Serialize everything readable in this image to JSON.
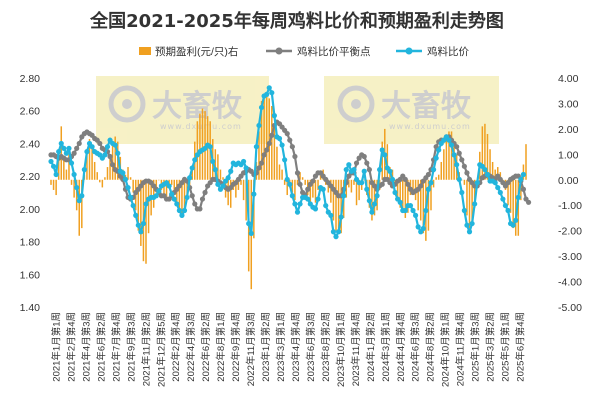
{
  "title": "全国2021-2025年每周鸡料比价和预期盈利走势图",
  "watermark": {
    "brand": "大畜牧",
    "url": "www.dxumu.com"
  },
  "colors": {
    "profit": "#f0a020",
    "balance": "#7f7f7f",
    "ratio": "#22b5dd",
    "band": "#f6f0c0"
  },
  "chart_data": {
    "type": "bar+line",
    "title": "全国2021-2025年每周鸡料比价和预期盈利走势图",
    "legend_position": "top",
    "x_labels": [
      "2021年1月第1周",
      "2021年2月第4周",
      "2021年4月第3周",
      "2021年6月第2周",
      "2021年7月第4周",
      "2021年9月第3周",
      "2021年11月第2周",
      "2021年12月第5周",
      "2022年2月第4周",
      "2022年4月第3周",
      "2022年6月第2周",
      "2022年8月第1周",
      "2022年9月第4周",
      "2022年11月第3周",
      "2023年1月第2周",
      "2023年3月第1周",
      "2023年4月第4周",
      "2023年6月第3周",
      "2023年8月第2周",
      "2023年10月第1周",
      "2023年11月第4周",
      "2024年1月第2周",
      "2024年3月第1周",
      "2024年4月第4周",
      "2024年6月第3周",
      "2024年8月第2周",
      "2024年10月第1周",
      "2024年11月第4周",
      "2025年1月第3周",
      "2025年3月第2周",
      "2025年5月第1周",
      "2025年6月第4周"
    ],
    "y_left": {
      "min": 1.4,
      "max": 2.8,
      "step": 0.2,
      "ticks": [
        "1.40",
        "1.60",
        "1.80",
        "2.00",
        "2.20",
        "2.40",
        "2.60",
        "2.80"
      ]
    },
    "y_right": {
      "min": -5.0,
      "max": 4.0,
      "step": 1.0,
      "ticks": [
        "-5.00",
        "-4.00",
        "-3.00",
        "-2.00",
        "-1.00",
        "0.00",
        "1.00",
        "2.00",
        "3.00",
        "4.00"
      ]
    },
    "series": [
      {
        "name": "预期盈利(元/只)右",
        "type": "bar",
        "axis": "right",
        "values": [
          -0.2,
          -0.4,
          -0.6,
          1.2,
          2.1,
          0.8,
          0.4,
          1.0,
          -0.2,
          -0.7,
          -1.2,
          -2.2,
          -1.9,
          0.2,
          1.1,
          1.6,
          1.3,
          0.7,
          0.3,
          -0.1,
          -0.3,
          0.1,
          0.5,
          1.0,
          1.4,
          1.7,
          1.5,
          0.9,
          0.4,
          0.2,
          0.5,
          0.1,
          -0.5,
          -1.2,
          -2.0,
          -2.6,
          -3.2,
          -3.3,
          -2.1,
          -1.4,
          -1.1,
          -0.5,
          0.0,
          -0.4,
          -0.6,
          -0.7,
          -0.3,
          -0.2,
          -0.5,
          -0.9,
          -1.3,
          -1.4,
          -1.3,
          -0.8,
          -0.4,
          0.5,
          1.5,
          2.3,
          2.6,
          2.8,
          2.7,
          2.5,
          2.3,
          1.6,
          1.2,
          1.0,
          0.4,
          0.1,
          -0.7,
          -1.0,
          -1.1,
          -0.4,
          -0.7,
          -0.4,
          -0.2,
          -0.8,
          -1.6,
          -3.6,
          -4.3,
          -2.3,
          0.7,
          1.9,
          3.1,
          3.3,
          3.4,
          3.2,
          2.9,
          2.2,
          1.3,
          0.6,
          0.4,
          -0.2,
          -0.6,
          -0.3,
          -0.5,
          -0.8,
          -0.2,
          0.3,
          0.1,
          -0.2,
          -0.6,
          -1.0,
          -0.7,
          -0.9,
          -0.4,
          0.3,
          0.4,
          -0.2,
          -0.5,
          -0.9,
          -1.6,
          -2.0,
          -2.0,
          -2.1,
          -1.5,
          -0.7,
          -0.3,
          -0.5,
          -0.2,
          -1.0,
          -0.8,
          -0.4,
          0.0,
          -0.6,
          -1.1,
          -1.6,
          -1.4,
          -1.2,
          -0.4,
          1.5,
          2.0,
          1.4,
          0.5,
          0.4,
          -0.2,
          -0.8,
          -1.1,
          -1.2,
          -1.5,
          -1.3,
          -0.6,
          -0.5,
          -0.8,
          -1.2,
          -1.6,
          -2.1,
          -2.4,
          -2.0,
          -1.2,
          -0.3,
          0.1,
          0.2,
          0.7,
          1.2,
          1.7,
          1.9,
          1.9,
          1.5,
          1.0,
          0.3,
          0.0,
          -0.2,
          -1.4,
          -1.9,
          -1.7,
          -1.1,
          -0.1,
          1.1,
          2.1,
          2.2,
          1.8,
          1.2,
          0.7,
          0.4,
          0.5,
          0.3,
          -0.1,
          -0.4,
          -1.0,
          -1.3,
          -1.9,
          -2.2,
          -2.2,
          -0.8,
          0.6,
          1.4
        ]
      },
      {
        "name": "鸡料比价平衡点",
        "type": "line",
        "axis": "left",
        "values": [
          2.33,
          2.33,
          2.32,
          2.31,
          2.32,
          2.31,
          2.3,
          2.3,
          2.32,
          2.34,
          2.37,
          2.4,
          2.44,
          2.46,
          2.47,
          2.46,
          2.45,
          2.43,
          2.42,
          2.4,
          2.37,
          2.36,
          2.35,
          2.32,
          2.27,
          2.24,
          2.23,
          2.2,
          2.18,
          2.12,
          2.07,
          2.06,
          2.07,
          2.1,
          2.12,
          2.14,
          2.16,
          2.17,
          2.17,
          2.16,
          2.14,
          2.12,
          2.1,
          2.08,
          2.08,
          2.06,
          2.06,
          2.08,
          2.1,
          2.12,
          2.14,
          2.16,
          2.18,
          2.17,
          2.13,
          2.08,
          2.03,
          2.0,
          2.0,
          2.06,
          2.1,
          2.14,
          2.16,
          2.18,
          2.18,
          2.17,
          2.16,
          2.15,
          2.13,
          2.12,
          2.13,
          2.15,
          2.16,
          2.18,
          2.2,
          2.22,
          2.23,
          2.24,
          2.23,
          2.21,
          2.22,
          2.25,
          2.28,
          2.33,
          2.36,
          2.4,
          2.45,
          2.51,
          2.53,
          2.52,
          2.5,
          2.48,
          2.46,
          2.42,
          2.38,
          2.32,
          2.22,
          2.15,
          2.1,
          2.08,
          2.12,
          2.15,
          2.17,
          2.2,
          2.22,
          2.22,
          2.2,
          2.18,
          2.16,
          2.14,
          2.12,
          2.1,
          2.08,
          2.08,
          2.12,
          2.16,
          2.2,
          2.22,
          2.22,
          2.28,
          2.31,
          2.33,
          2.32,
          2.28,
          2.24,
          2.16,
          2.14,
          2.12,
          2.14,
          2.15,
          2.18,
          2.18,
          2.16,
          2.14,
          2.15,
          2.17,
          2.18,
          2.2,
          2.18,
          2.15,
          2.12,
          2.1,
          2.11,
          2.12,
          2.14,
          2.17,
          2.19,
          2.21,
          2.24,
          2.3,
          2.38,
          2.41,
          2.42,
          2.42,
          2.44,
          2.44,
          2.42,
          2.4,
          2.38,
          2.34,
          2.3,
          2.26,
          2.22,
          2.18,
          2.16,
          2.14,
          2.14,
          2.16,
          2.19,
          2.2,
          2.21,
          2.2,
          2.19,
          2.18,
          2.2,
          2.18,
          2.16,
          2.14,
          2.16,
          2.18,
          2.19,
          2.2,
          2.2,
          2.17,
          2.12,
          2.06,
          2.04
        ]
      },
      {
        "name": "鸡料比价",
        "type": "line",
        "axis": "left",
        "values": [
          2.29,
          2.26,
          2.21,
          2.35,
          2.4,
          2.37,
          2.34,
          2.37,
          2.28,
          2.21,
          2.13,
          2.05,
          2.08,
          2.24,
          2.35,
          2.4,
          2.38,
          2.35,
          2.34,
          2.33,
          2.31,
          2.33,
          2.38,
          2.42,
          2.4,
          2.39,
          2.34,
          2.23,
          2.22,
          2.18,
          2.13,
          2.07,
          2.02,
          1.96,
          1.9,
          1.86,
          1.91,
          2.03,
          2.06,
          2.07,
          2.07,
          2.08,
          2.11,
          2.14,
          2.15,
          2.16,
          2.14,
          2.09,
          2.06,
          2.03,
          1.99,
          1.96,
          1.99,
          2.07,
          2.19,
          2.25,
          2.3,
          2.33,
          2.35,
          2.36,
          2.37,
          2.39,
          2.38,
          2.29,
          2.24,
          2.15,
          2.12,
          2.14,
          2.17,
          2.19,
          2.23,
          2.28,
          2.27,
          2.28,
          2.27,
          2.29,
          2.25,
          1.91,
          1.85,
          2.09,
          2.38,
          2.51,
          2.62,
          2.69,
          2.7,
          2.74,
          2.71,
          2.57,
          2.44,
          2.43,
          2.39,
          2.3,
          2.18,
          2.15,
          2.08,
          2.03,
          1.98,
          2.03,
          2.07,
          2.07,
          2.06,
          2.03,
          2.01,
          2.0,
          2.06,
          2.13,
          2.12,
          2.02,
          1.98,
          1.96,
          1.86,
          1.83,
          1.86,
          1.95,
          2.08,
          2.24,
          2.27,
          2.23,
          2.24,
          2.18,
          2.16,
          2.16,
          2.23,
          2.12,
          2.05,
          1.98,
          2.03,
          2.08,
          2.24,
          2.36,
          2.33,
          2.25,
          2.23,
          2.18,
          2.1,
          2.06,
          2.04,
          1.99,
          1.99,
          2.02,
          2.02,
          1.99,
          1.96,
          1.89,
          1.86,
          1.88,
          1.99,
          2.12,
          2.16,
          2.24,
          2.31,
          2.36,
          2.4,
          2.42,
          2.44,
          2.42,
          2.39,
          2.33,
          2.27,
          2.18,
          2.1,
          1.99,
          1.9,
          1.86,
          1.91,
          2.03,
          2.16,
          2.27,
          2.26,
          2.24,
          2.21,
          2.17,
          2.17,
          2.16,
          2.13,
          2.1,
          2.06,
          2.02,
          1.99,
          1.91,
          1.9,
          1.93,
          2.07,
          2.18,
          2.21
        ]
      }
    ]
  }
}
